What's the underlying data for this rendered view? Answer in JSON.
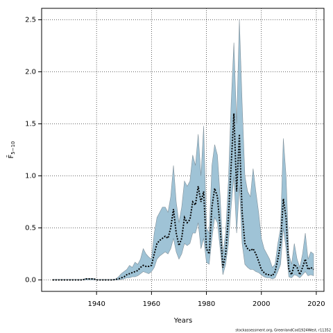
{
  "chart_data": {
    "type": "line",
    "x_label": "Years",
    "y_label": "F̄",
    "y_label_subscript": "5−10",
    "footnote": "stockassessment.org, GreenlandCod1924West, r11352",
    "x": [
      1924,
      1925,
      1926,
      1927,
      1928,
      1929,
      1930,
      1931,
      1932,
      1933,
      1934,
      1935,
      1936,
      1937,
      1938,
      1939,
      1940,
      1941,
      1942,
      1943,
      1944,
      1945,
      1946,
      1947,
      1948,
      1949,
      1950,
      1951,
      1952,
      1953,
      1954,
      1955,
      1956,
      1957,
      1958,
      1959,
      1960,
      1961,
      1962,
      1963,
      1964,
      1965,
      1966,
      1967,
      1968,
      1969,
      1970,
      1971,
      1972,
      1973,
      1974,
      1975,
      1976,
      1977,
      1978,
      1979,
      1980,
      1981,
      1982,
      1983,
      1984,
      1985,
      1986,
      1987,
      1988,
      1989,
      1990,
      1991,
      1992,
      1993,
      1994,
      1995,
      1996,
      1997,
      1998,
      1999,
      2000,
      2001,
      2002,
      2003,
      2004,
      2005,
      2006,
      2007,
      2008,
      2009,
      2010,
      2011,
      2012,
      2013,
      2014,
      2015,
      2016,
      2017,
      2018,
      2019
    ],
    "values": [
      0,
      0,
      0,
      0,
      0,
      0,
      0,
      0,
      0,
      0,
      0,
      0,
      0.01,
      0.01,
      0.01,
      0.01,
      0,
      0,
      0,
      0,
      0,
      0,
      0,
      0.005,
      0.01,
      0.02,
      0.03,
      0.05,
      0.06,
      0.07,
      0.08,
      0.09,
      0.12,
      0.14,
      0.13,
      0.13,
      0.14,
      0.25,
      0.35,
      0.38,
      0.4,
      0.42,
      0.4,
      0.5,
      0.68,
      0.45,
      0.33,
      0.4,
      0.6,
      0.55,
      0.58,
      0.75,
      0.72,
      0.9,
      0.75,
      0.85,
      0.3,
      0.25,
      0.7,
      0.88,
      0.8,
      0.5,
      0.12,
      0.25,
      0.6,
      1.1,
      1.6,
      0.85,
      1.4,
      0.65,
      0.35,
      0.3,
      0.28,
      0.3,
      0.25,
      0.18,
      0.1,
      0.07,
      0.05,
      0.05,
      0.04,
      0.08,
      0.2,
      0.35,
      0.78,
      0.6,
      0.1,
      0.05,
      0.15,
      0.12,
      0.05,
      0.12,
      0.2,
      0.1,
      0.12,
      0.1
    ],
    "lower": [
      0,
      0,
      0,
      0,
      0,
      0,
      0,
      0,
      0,
      0,
      0,
      0,
      0,
      0,
      0,
      0,
      0,
      0,
      0,
      0,
      0,
      0,
      0,
      0,
      0,
      0.005,
      0.01,
      0.02,
      0.02,
      0.03,
      0.03,
      0.04,
      0.06,
      0.08,
      0.07,
      0.06,
      0.08,
      0.12,
      0.2,
      0.23,
      0.25,
      0.27,
      0.25,
      0.3,
      0.4,
      0.27,
      0.2,
      0.25,
      0.35,
      0.33,
      0.35,
      0.45,
      0.45,
      0.55,
      0.3,
      0.4,
      0.17,
      0.15,
      0.4,
      0.6,
      0.55,
      0.3,
      0.05,
      0.15,
      0.35,
      0.7,
      1.0,
      0.45,
      0.9,
      0.35,
      0.15,
      0.12,
      0.1,
      0.1,
      0.08,
      0.07,
      0.05,
      0.03,
      0.02,
      0.02,
      0.01,
      0.02,
      0.08,
      0.15,
      0.5,
      0.3,
      0.03,
      0.02,
      0.05,
      0.04,
      0.02,
      0.05,
      0.08,
      0.04,
      0.05,
      0.04
    ],
    "upper": [
      0.005,
      0.005,
      0.005,
      0.005,
      0.005,
      0.005,
      0.005,
      0.005,
      0.005,
      0.005,
      0.005,
      0.005,
      0.015,
      0.015,
      0.015,
      0.015,
      0.005,
      0.005,
      0.005,
      0.005,
      0.005,
      0.005,
      0.005,
      0.01,
      0.03,
      0.06,
      0.08,
      0.1,
      0.14,
      0.12,
      0.17,
      0.15,
      0.2,
      0.3,
      0.25,
      0.22,
      0.2,
      0.45,
      0.6,
      0.65,
      0.7,
      0.7,
      0.65,
      0.8,
      1.1,
      0.75,
      0.55,
      0.7,
      0.95,
      0.9,
      0.95,
      1.2,
      1.1,
      1.4,
      1.0,
      1.48,
      0.5,
      0.45,
      1.1,
      1.3,
      1.2,
      0.8,
      0.25,
      0.45,
      0.95,
      1.7,
      2.28,
      1.5,
      2.5,
      1.7,
      1.0,
      0.85,
      0.8,
      1.07,
      0.85,
      0.65,
      0.4,
      0.3,
      0.25,
      0.2,
      0.12,
      0.15,
      0.35,
      0.5,
      1.36,
      1.0,
      0.25,
      0.15,
      0.35,
      0.2,
      0.12,
      0.25,
      0.45,
      0.2,
      0.27,
      0.25
    ],
    "color": "#000000",
    "band_color": "#9fc3d6",
    "xlim": [
      1920,
      2022.8
    ],
    "ylim": [
      -0.11,
      2.61
    ],
    "xticks": [
      1940,
      1960,
      1980,
      2000,
      2020
    ],
    "yticks": [
      {
        "value": 0,
        "label": "0.0"
      },
      {
        "value": 0.5,
        "label": "0.5"
      },
      {
        "value": 1,
        "label": "1.0"
      },
      {
        "value": 1.5,
        "label": "1.5"
      },
      {
        "value": 2,
        "label": "2.0"
      },
      {
        "value": 2.5,
        "label": "2.5"
      }
    ],
    "grid": true
  }
}
